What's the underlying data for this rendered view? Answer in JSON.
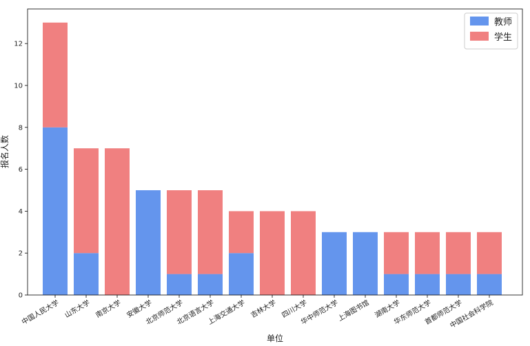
{
  "chart_data": {
    "type": "bar",
    "stacked": true,
    "categories": [
      "中国人民大学",
      "山东大学",
      "南京大学",
      "安徽大学",
      "北京师范大学",
      "北京语言大学",
      "上海交通大学",
      "吉林大学",
      "四川大学",
      "华中师范大学",
      "上海图书馆",
      "湖南大学",
      "华东师范大学",
      "首都师范大学",
      "中国社会科学院"
    ],
    "series": [
      {
        "name": "教师",
        "color": "#6495ED",
        "values": [
          8,
          2,
          0,
          5,
          1,
          1,
          2,
          0,
          0,
          3,
          3,
          1,
          1,
          1,
          1
        ]
      },
      {
        "name": "学生",
        "color": "#F08080",
        "values": [
          5,
          5,
          7,
          0,
          4,
          4,
          2,
          4,
          4,
          0,
          0,
          2,
          2,
          2,
          2
        ]
      }
    ],
    "xlabel": "单位",
    "ylabel": "报名人数",
    "ylim": [
      0,
      13.65
    ],
    "yticks": [
      0,
      2,
      4,
      6,
      8,
      10,
      12
    ],
    "legend_position": "top-right",
    "grid": false
  }
}
